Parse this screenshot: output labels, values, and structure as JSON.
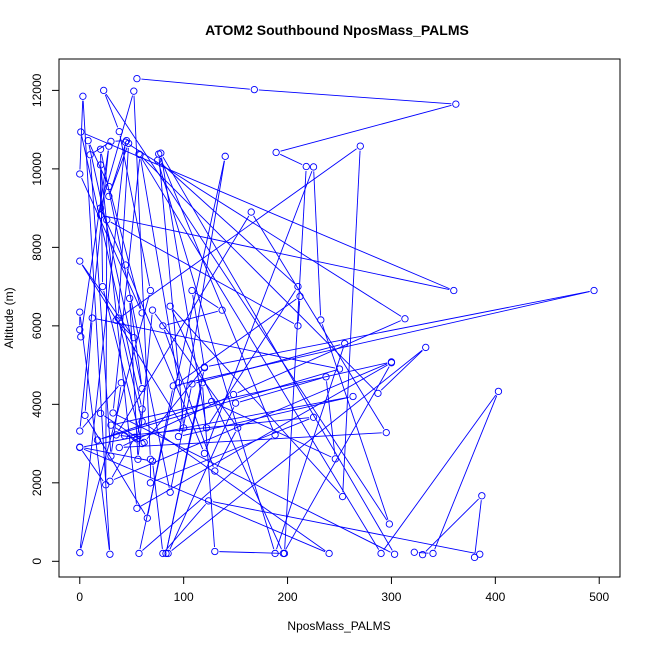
{
  "chart_data": {
    "type": "line",
    "title": "ATOM2 Southbound NposMass_PALMS",
    "xlabel": "NposMass_PALMS",
    "ylabel": "Altitude (m)",
    "xlim": [
      -20,
      520
    ],
    "ylim": [
      -400,
      12800
    ],
    "xticks": [
      0,
      100,
      200,
      300,
      400,
      500
    ],
    "yticks": [
      0,
      2000,
      4000,
      6000,
      8000,
      10000,
      12000
    ],
    "grid": false,
    "marker": "open-circle",
    "color": "#0000ff",
    "series": [
      {
        "x": [
          55,
          168,
          362,
          189,
          218,
          197,
          130,
          118,
          83,
          120,
          108,
          137,
          80,
          130,
          152,
          70,
          56,
          48,
          60,
          8,
          28,
          60,
          0,
          3,
          29,
          0,
          0,
          1,
          28,
          0,
          40,
          30,
          10,
          30,
          45,
          28,
          47,
          37,
          60,
          240,
          0,
          263,
          95,
          140,
          57,
          188,
          76,
          100,
          0,
          52,
          35,
          270,
          253,
          87,
          196,
          300,
          55,
          20,
          20,
          360,
          1,
          60,
          55,
          43,
          225,
          68,
          68,
          52,
          20,
          44,
          120,
          225,
          232,
          298,
          23,
          38,
          68,
          0,
          44,
          313,
          148,
          38,
          295,
          165,
          35,
          53,
          29,
          300,
          30,
          60,
          22,
          20,
          87,
          108,
          255,
          188,
          75,
          210,
          122,
          78,
          303,
          32,
          58,
          95,
          212,
          210,
          26,
          25,
          0,
          70,
          80,
          124,
          385,
          380,
          387,
          330,
          322,
          340,
          403,
          290,
          57,
          287,
          333,
          85,
          150,
          237,
          246,
          127,
          17,
          250,
          12,
          5,
          65,
          90,
          495,
          120,
          62,
          20
        ],
        "y": [
          12300,
          12020,
          11650,
          10420,
          10060,
          200,
          250,
          4550,
          200,
          4930,
          6900,
          6400,
          6000,
          2300,
          3400,
          6400,
          2600,
          6700,
          4400,
          10720,
          9550,
          6330,
          9870,
          11850,
          180,
          6350,
          5900,
          5720,
          10580,
          3320,
          4550,
          2680,
          10360,
          10700,
          10720,
          9300,
          10650,
          6200,
          3560,
          200,
          2900,
          4200,
          3180,
          10320,
          200,
          3220,
          10380,
          3400,
          7650,
          5700,
          6140,
          10580,
          1650,
          6500,
          200,
          5060,
          1350,
          10100,
          8820,
          6900,
          10940,
          3880,
          3120,
          3200,
          3670,
          2000,
          2600,
          11980,
          9000,
          7550,
          2750,
          10050,
          6150,
          950,
          12000,
          10950,
          6900,
          220,
          10680,
          6180,
          4250,
          2900,
          3280,
          8900,
          3220,
          3160,
          2040,
          5080,
          3470,
          3000,
          7000,
          10500,
          1760,
          4520,
          5550,
          200,
          10220,
          7000,
          3400,
          10400,
          180,
          3780,
          10360,
          4550,
          6750,
          6000,
          8700,
          1950,
          2910,
          2550,
          200,
          1540,
          180,
          100,
          1670,
          170,
          230,
          200,
          4330,
          200,
          10380,
          4280,
          5450,
          200,
          4030,
          4700,
          2610,
          4070,
          3090,
          4900,
          6200,
          3720,
          1100,
          4470,
          6900,
          4950,
          3030,
          3770
        ]
      }
    ]
  }
}
